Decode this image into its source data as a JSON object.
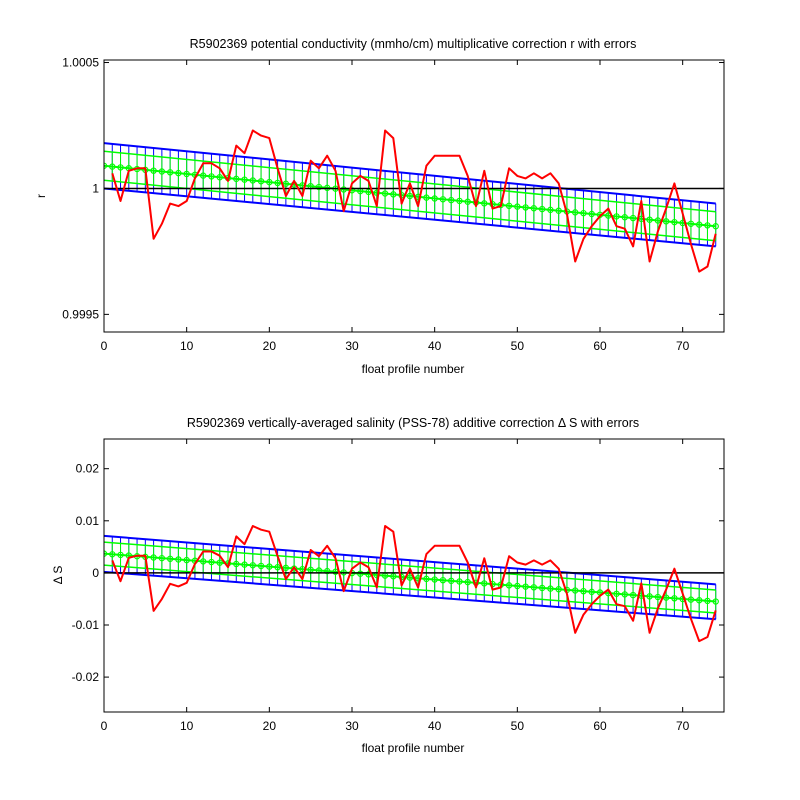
{
  "colors": {
    "background": "#ffffff",
    "axes": "#000000",
    "error_bars": "#0000ff",
    "fit": "#00ff00",
    "data": "#ff0000",
    "reference": "#000000"
  },
  "chart_data": [
    {
      "type": "line",
      "title": "R5902369 potential conductivity (mmho/cm) multiplicative correction r with errors",
      "xlabel": "float profile number",
      "ylabel": "r",
      "xlim": [
        0,
        75
      ],
      "ylim": [
        0.99943,
        1.00051
      ],
      "xticks": [
        0,
        10,
        20,
        30,
        40,
        50,
        60,
        70
      ],
      "xtick_labels": [
        "0",
        "10",
        "20",
        "30",
        "40",
        "50",
        "60",
        "70"
      ],
      "yticks": [
        0.9995,
        1.0,
        1.0005
      ],
      "ytick_labels": [
        "0.9995",
        "1",
        "1.0005"
      ],
      "reference_line": 1.0,
      "fit": {
        "x0": 0,
        "x1": 74,
        "y0": 1.00009,
        "y1": 0.99985
      },
      "band": {
        "upper0": 1.00018,
        "upper1": 0.99994,
        "lower0": 1.0,
        "lower1": 0.99977
      },
      "series": [
        {
          "x": [
            1,
            2,
            3,
            4,
            5,
            6,
            7,
            8,
            9,
            10,
            11,
            12,
            13,
            14,
            15,
            16,
            17,
            18,
            19,
            20,
            21,
            22,
            23,
            24,
            25,
            26,
            27,
            28,
            29,
            30,
            31,
            32,
            33,
            34,
            35,
            36,
            37,
            38,
            39,
            40,
            41,
            42,
            43,
            44,
            45,
            46,
            47,
            48,
            49,
            50,
            51,
            52,
            53,
            54,
            55,
            56,
            57,
            58,
            59,
            60,
            61,
            62,
            63,
            64,
            65,
            66,
            67,
            68,
            69,
            70,
            71,
            72,
            73,
            74
          ],
          "y": [
            1.00006,
            0.99995,
            1.00007,
            1.00008,
            1.00008,
            0.9998,
            0.99986,
            0.99994,
            0.99993,
            0.99995,
            1.00004,
            1.0001,
            1.0001,
            1.00008,
            1.00003,
            1.00017,
            1.00014,
            1.00023,
            1.00021,
            1.0002,
            1.00008,
            0.99997,
            1.00003,
            0.99997,
            1.00011,
            1.00008,
            1.00013,
            1.00007,
            0.99991,
            1.00002,
            1.00005,
            1.00003,
            0.99993,
            1.00023,
            1.0002,
            0.99994,
            1.00002,
            0.99993,
            1.00009,
            1.00013,
            1.00013,
            1.00013,
            1.00013,
            1.00005,
            0.99993,
            1.00007,
            0.99992,
            0.99993,
            1.00008,
            1.00005,
            1.00004,
            1.00006,
            1.00004,
            1.00006,
            1.00002,
            0.9999,
            0.99971,
            0.9998,
            0.99985,
            0.99989,
            0.99992,
            0.99985,
            0.99984,
            0.99977,
            0.99995,
            0.99971,
            0.99983,
            0.99992,
            1.00002,
            0.9999,
            0.99978,
            0.99967,
            0.99969,
            0.99982
          ]
        }
      ]
    },
    {
      "type": "line",
      "title": "R5902369 vertically-averaged salinity (PSS-78) additive correction Δ S with errors",
      "xlabel": "float profile number",
      "ylabel": "Δ S",
      "xlim": [
        0,
        75
      ],
      "ylim": [
        -0.0267,
        0.0257
      ],
      "xticks": [
        0,
        10,
        20,
        30,
        40,
        50,
        60,
        70
      ],
      "xtick_labels": [
        "0",
        "10",
        "20",
        "30",
        "40",
        "50",
        "60",
        "70"
      ],
      "yticks": [
        -0.02,
        -0.01,
        0,
        0.01,
        0.02
      ],
      "ytick_labels": [
        "-0.02",
        "-0.01",
        "0",
        "0.01",
        "0.02"
      ],
      "reference_line": 0,
      "fit": {
        "x0": 0,
        "x1": 74,
        "y0": 0.0037,
        "y1": -0.0055
      },
      "band": {
        "upper0": 0.0071,
        "upper1": -0.0022,
        "lower0": 0.0002,
        "lower1": -0.0089
      },
      "series": [
        {
          "x": [
            1,
            2,
            3,
            4,
            5,
            6,
            7,
            8,
            9,
            10,
            11,
            12,
            13,
            14,
            15,
            16,
            17,
            18,
            19,
            20,
            21,
            22,
            23,
            24,
            25,
            26,
            27,
            28,
            29,
            30,
            31,
            32,
            33,
            34,
            35,
            36,
            37,
            38,
            39,
            40,
            41,
            42,
            43,
            44,
            45,
            46,
            47,
            48,
            49,
            50,
            51,
            52,
            53,
            54,
            55,
            56,
            57,
            58,
            59,
            60,
            61,
            62,
            63,
            64,
            65,
            66,
            67,
            68,
            69,
            70,
            71,
            72,
            73,
            74
          ],
          "y": [
            0.0024,
            -0.0016,
            0.0029,
            0.0033,
            0.0033,
            -0.0073,
            -0.005,
            -0.0021,
            -0.0026,
            -0.0019,
            0.0017,
            0.0041,
            0.0041,
            0.0033,
            0.0011,
            0.007,
            0.0055,
            0.009,
            0.0083,
            0.0079,
            0.0032,
            -0.0012,
            0.0011,
            -0.0012,
            0.0044,
            0.0032,
            0.0052,
            0.0028,
            -0.0035,
            0.0008,
            0.002,
            0.0011,
            -0.0028,
            0.009,
            0.0079,
            -0.0024,
            0.0008,
            -0.0028,
            0.0036,
            0.0052,
            0.0052,
            0.0052,
            0.0052,
            0.002,
            -0.0028,
            0.0028,
            -0.0032,
            -0.0028,
            0.0032,
            0.002,
            0.0016,
            0.0024,
            0.0016,
            0.0024,
            0.0008,
            -0.004,
            -0.0115,
            -0.008,
            -0.006,
            -0.0044,
            -0.0032,
            -0.006,
            -0.0064,
            -0.0092,
            -0.002,
            -0.0115,
            -0.0068,
            -0.0032,
            0.0008,
            -0.004,
            -0.0088,
            -0.0131,
            -0.0123,
            -0.0072
          ]
        }
      ]
    }
  ]
}
